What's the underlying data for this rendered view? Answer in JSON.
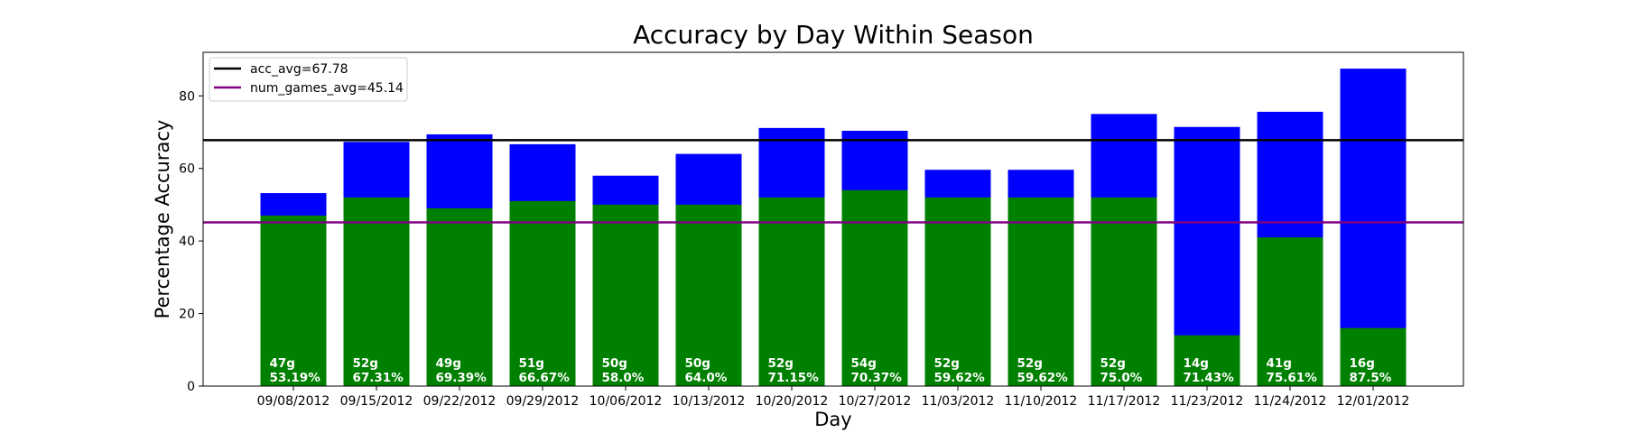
{
  "chart_data": {
    "type": "bar",
    "title": "Accuracy by Day Within Season",
    "xlabel": "Day",
    "ylabel": "Percentage Accuracy",
    "ylim": [
      0,
      92
    ],
    "yticks": [
      0,
      20,
      40,
      60,
      80
    ],
    "categories": [
      "09/08/2012",
      "09/15/2012",
      "09/22/2012",
      "09/29/2012",
      "10/06/2012",
      "10/13/2012",
      "10/20/2012",
      "10/27/2012",
      "11/03/2012",
      "11/10/2012",
      "11/17/2012",
      "11/23/2012",
      "11/24/2012",
      "12/01/2012"
    ],
    "series": [
      {
        "color": "#0000ff",
        "values": [
          53.19,
          67.31,
          69.39,
          66.67,
          58.0,
          64.0,
          71.15,
          70.37,
          59.62,
          59.62,
          75.0,
          71.43,
          75.61,
          87.5
        ]
      },
      {
        "color": "#008000",
        "values": [
          47,
          52,
          49,
          51,
          50,
          50,
          52,
          54,
          52,
          52,
          52,
          14,
          41,
          16
        ]
      }
    ],
    "bar_labels": [
      [
        "47g",
        "53.19%"
      ],
      [
        "52g",
        "67.31%"
      ],
      [
        "49g",
        "69.39%"
      ],
      [
        "51g",
        "66.67%"
      ],
      [
        "50g",
        "58.0%"
      ],
      [
        "50g",
        "64.0%"
      ],
      [
        "52g",
        "71.15%"
      ],
      [
        "54g",
        "70.37%"
      ],
      [
        "52g",
        "59.62%"
      ],
      [
        "52g",
        "59.62%"
      ],
      [
        "52g",
        "75.0%"
      ],
      [
        "14g",
        "71.43%"
      ],
      [
        "41g",
        "75.61%"
      ],
      [
        "16g",
        "87.5%"
      ]
    ],
    "reference_lines": [
      {
        "label": "acc_avg=67.78",
        "value": 67.78,
        "color": "#000000"
      },
      {
        "label": "num_games_avg=45.14",
        "value": 45.14,
        "color": "#800080"
      }
    ],
    "legend": {
      "position": "upper-left"
    },
    "grid": false
  }
}
